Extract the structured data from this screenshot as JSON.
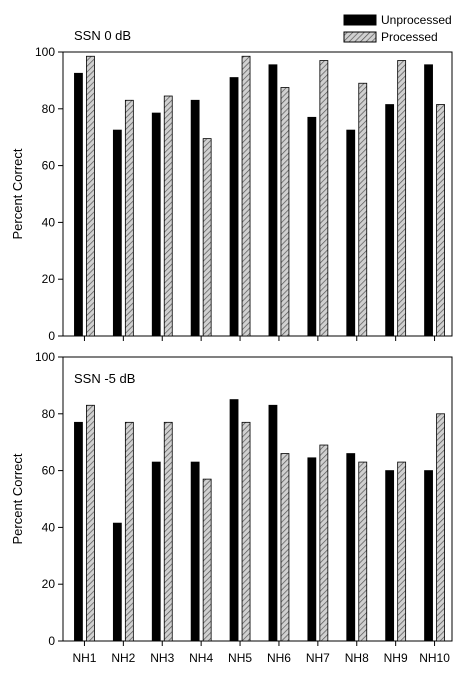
{
  "legend": {
    "items": [
      {
        "label": "Unprocessed",
        "pattern": "solid",
        "color": "#000000"
      },
      {
        "label": "Processed",
        "pattern": "hatched",
        "color": "#bdbdbd"
      }
    ]
  },
  "chart_data": [
    {
      "type": "bar",
      "title": "SSN 0 dB",
      "xlabel": "",
      "ylabel": "Percent Correct",
      "ylim": [
        0,
        100
      ],
      "yticks": [
        "0",
        "20",
        "40",
        "60",
        "80",
        "100"
      ],
      "categories": [
        "NH1",
        "NH2",
        "NH3",
        "NH4",
        "NH5",
        "NH6",
        "NH7",
        "NH8",
        "NH9",
        "NH10"
      ],
      "show_category_labels": false,
      "series": [
        {
          "name": "Unprocessed",
          "values": [
            92.5,
            72.5,
            78.5,
            83,
            91,
            95.5,
            77,
            72.5,
            81.5,
            95.5
          ]
        },
        {
          "name": "Processed",
          "values": [
            98.5,
            83,
            84.5,
            69.5,
            98.5,
            87.5,
            97,
            89,
            97,
            81.5
          ]
        }
      ],
      "grid": false
    },
    {
      "type": "bar",
      "title": "SSN -5 dB",
      "xlabel": "",
      "ylabel": "Percent Correct",
      "ylim": [
        0,
        100
      ],
      "yticks": [
        "0",
        "20",
        "40",
        "60",
        "80",
        "100"
      ],
      "categories": [
        "NH1",
        "NH2",
        "NH3",
        "NH4",
        "NH5",
        "NH6",
        "NH7",
        "NH8",
        "NH9",
        "NH10"
      ],
      "show_category_labels": true,
      "series": [
        {
          "name": "Unprocessed",
          "values": [
            77,
            41.5,
            63,
            63,
            85,
            83,
            64.5,
            66,
            60,
            60
          ]
        },
        {
          "name": "Processed",
          "values": [
            83,
            77,
            77,
            57,
            77,
            66,
            69,
            63,
            63,
            80
          ]
        }
      ],
      "grid": false
    }
  ]
}
